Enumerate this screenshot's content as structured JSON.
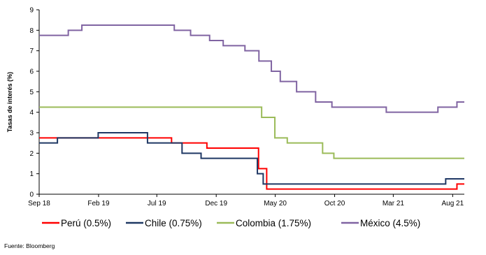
{
  "chart_data": {
    "type": "line",
    "step": true,
    "title": "",
    "ylabel": "Tasas de interés (%)",
    "xlabel": "",
    "ylim": [
      0,
      9
    ],
    "y_ticks": [
      0,
      1,
      2,
      3,
      4,
      5,
      6,
      7,
      8,
      9
    ],
    "xlim": [
      "2018-09-01",
      "2021-08-31"
    ],
    "x_ticks": [
      {
        "date": "2018-09-01",
        "label": "Sep 18"
      },
      {
        "date": "2019-02-01",
        "label": "Feb 19"
      },
      {
        "date": "2019-07-01",
        "label": "Jul 19"
      },
      {
        "date": "2019-12-01",
        "label": "Dec 19"
      },
      {
        "date": "2020-05-01",
        "label": "May 20"
      },
      {
        "date": "2020-10-01",
        "label": "Oct 20"
      },
      {
        "date": "2021-03-01",
        "label": "Mar 21"
      },
      {
        "date": "2021-08-01",
        "label": "Aug 21"
      }
    ],
    "grid": false,
    "legend_position": "bottom",
    "series": [
      {
        "name": "Perú (0.5%)",
        "color": "#ff0000",
        "points": [
          {
            "date": "2018-09-01",
            "value": 2.75
          },
          {
            "date": "2019-08-08",
            "value": 2.5
          },
          {
            "date": "2019-11-07",
            "value": 2.25
          },
          {
            "date": "2020-03-19",
            "value": 1.25
          },
          {
            "date": "2020-04-09",
            "value": 0.25
          },
          {
            "date": "2021-08-12",
            "value": 0.5
          }
        ]
      },
      {
        "name": "Chile (0.75%)",
        "color": "#1f3864",
        "points": [
          {
            "date": "2018-09-01",
            "value": 2.5
          },
          {
            "date": "2018-10-18",
            "value": 2.75
          },
          {
            "date": "2019-01-31",
            "value": 3.0
          },
          {
            "date": "2019-06-07",
            "value": 2.5
          },
          {
            "date": "2019-09-04",
            "value": 2.0
          },
          {
            "date": "2019-10-23",
            "value": 1.75
          },
          {
            "date": "2020-03-16",
            "value": 1.0
          },
          {
            "date": "2020-03-31",
            "value": 0.5
          },
          {
            "date": "2021-07-14",
            "value": 0.75
          }
        ]
      },
      {
        "name": "Colombia (1.75%)",
        "color": "#9bbb59",
        "points": [
          {
            "date": "2018-09-01",
            "value": 4.25
          },
          {
            "date": "2020-03-27",
            "value": 3.75
          },
          {
            "date": "2020-04-30",
            "value": 2.75
          },
          {
            "date": "2020-06-01",
            "value": 2.5
          },
          {
            "date": "2020-08-31",
            "value": 2.0
          },
          {
            "date": "2020-09-29",
            "value": 1.75
          }
        ]
      },
      {
        "name": "México (4.5%)",
        "color": "#8064a2",
        "points": [
          {
            "date": "2018-09-01",
            "value": 7.75
          },
          {
            "date": "2018-11-15",
            "value": 8.0
          },
          {
            "date": "2018-12-20",
            "value": 8.25
          },
          {
            "date": "2019-08-15",
            "value": 8.0
          },
          {
            "date": "2019-09-26",
            "value": 7.75
          },
          {
            "date": "2019-11-14",
            "value": 7.5
          },
          {
            "date": "2019-12-19",
            "value": 7.25
          },
          {
            "date": "2020-02-13",
            "value": 7.0
          },
          {
            "date": "2020-03-20",
            "value": 6.5
          },
          {
            "date": "2020-04-21",
            "value": 6.0
          },
          {
            "date": "2020-05-14",
            "value": 5.5
          },
          {
            "date": "2020-06-25",
            "value": 5.0
          },
          {
            "date": "2020-08-13",
            "value": 4.5
          },
          {
            "date": "2020-09-24",
            "value": 4.25
          },
          {
            "date": "2021-02-11",
            "value": 4.0
          },
          {
            "date": "2021-06-24",
            "value": 4.25
          },
          {
            "date": "2021-08-12",
            "value": 4.5
          }
        ]
      }
    ]
  },
  "source_note": "Fuente: Bloomberg"
}
